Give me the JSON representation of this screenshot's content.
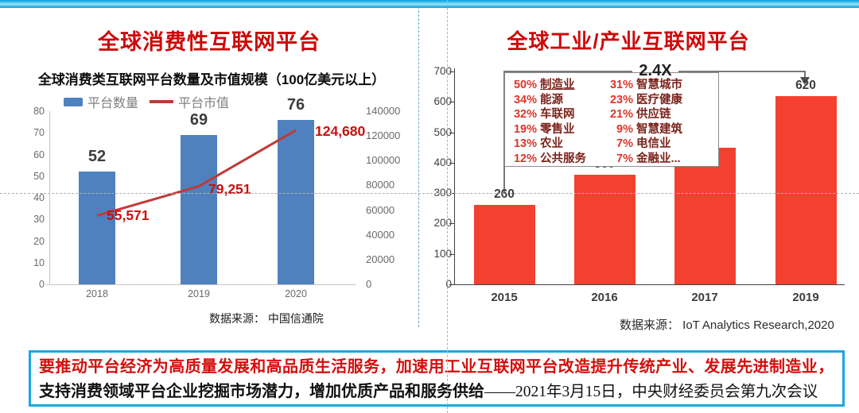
{
  "colors": {
    "title_red": "#CD0909",
    "bar_blue": "#4E81BD",
    "bar_red": "#F4402F",
    "line_red": "#BE3B38",
    "value_label_red": "#C9100C",
    "cyan_accent": "#19A8E2"
  },
  "chart_data": [
    {
      "id": "consumer-platforms",
      "type": "bar",
      "title": "全球消费性互联网平台",
      "subtitle": "全球消费类互联网平台数量及市值规模（100亿美元以上）",
      "categories": [
        "2018",
        "2019",
        "2020"
      ],
      "series": [
        {
          "name": "平台数量",
          "type": "bar",
          "axis": "left",
          "values": [
            52,
            69,
            76
          ]
        },
        {
          "name": "平台市值",
          "type": "line",
          "axis": "right",
          "values": [
            55571,
            79251,
            124680
          ],
          "labels": [
            "55,571",
            "79,251",
            "124,680"
          ]
        }
      ],
      "left_axis": {
        "min": 0,
        "max": 80,
        "step": 10
      },
      "right_axis": {
        "min": 0,
        "max": 140000,
        "step": 20000
      },
      "legend_position": "top",
      "grid": false,
      "source": "数据来源：  中国信通院"
    },
    {
      "id": "industrial-platforms",
      "type": "bar",
      "title": "全球工业/产业互联网平台",
      "categories": [
        "2015",
        "2016",
        "2017",
        "2019"
      ],
      "values": [
        260,
        360,
        450,
        620
      ],
      "y_axis": {
        "min": 0,
        "max": 700,
        "step": 100
      },
      "annotation": "2.4X",
      "grid": false,
      "industries": [
        {
          "pct": "50%",
          "label": "制造业",
          "underline": true
        },
        {
          "pct": "34%",
          "label": "能源"
        },
        {
          "pct": "32%",
          "label": "车联网"
        },
        {
          "pct": "19%",
          "label": "零售业"
        },
        {
          "pct": "13%",
          "label": "农业"
        },
        {
          "pct": "12%",
          "label": "公共服务"
        },
        {
          "pct": "31%",
          "label": "智慧城市"
        },
        {
          "pct": "23%",
          "label": "医疗健康"
        },
        {
          "pct": "21%",
          "label": "供应链"
        },
        {
          "pct": "9%",
          "label": "智慧建筑"
        },
        {
          "pct": "7%",
          "label": "电信业"
        },
        {
          "pct": "7%",
          "label": "金融业..."
        }
      ],
      "source": "数据来源： IoT Analytics Research,2020"
    }
  ],
  "quote": {
    "line1": "要推动平台经济为高质量发展和高品质生活服务，加速用工业互联网平台改造提升传统产业、发展先进制造业，",
    "line2_bold": "支持消费领域平台企业挖掘市场潜力，增加优质产品和服务供给",
    "line2_tail": "——2021年3月15日，中央财经委员会第九次会议"
  }
}
